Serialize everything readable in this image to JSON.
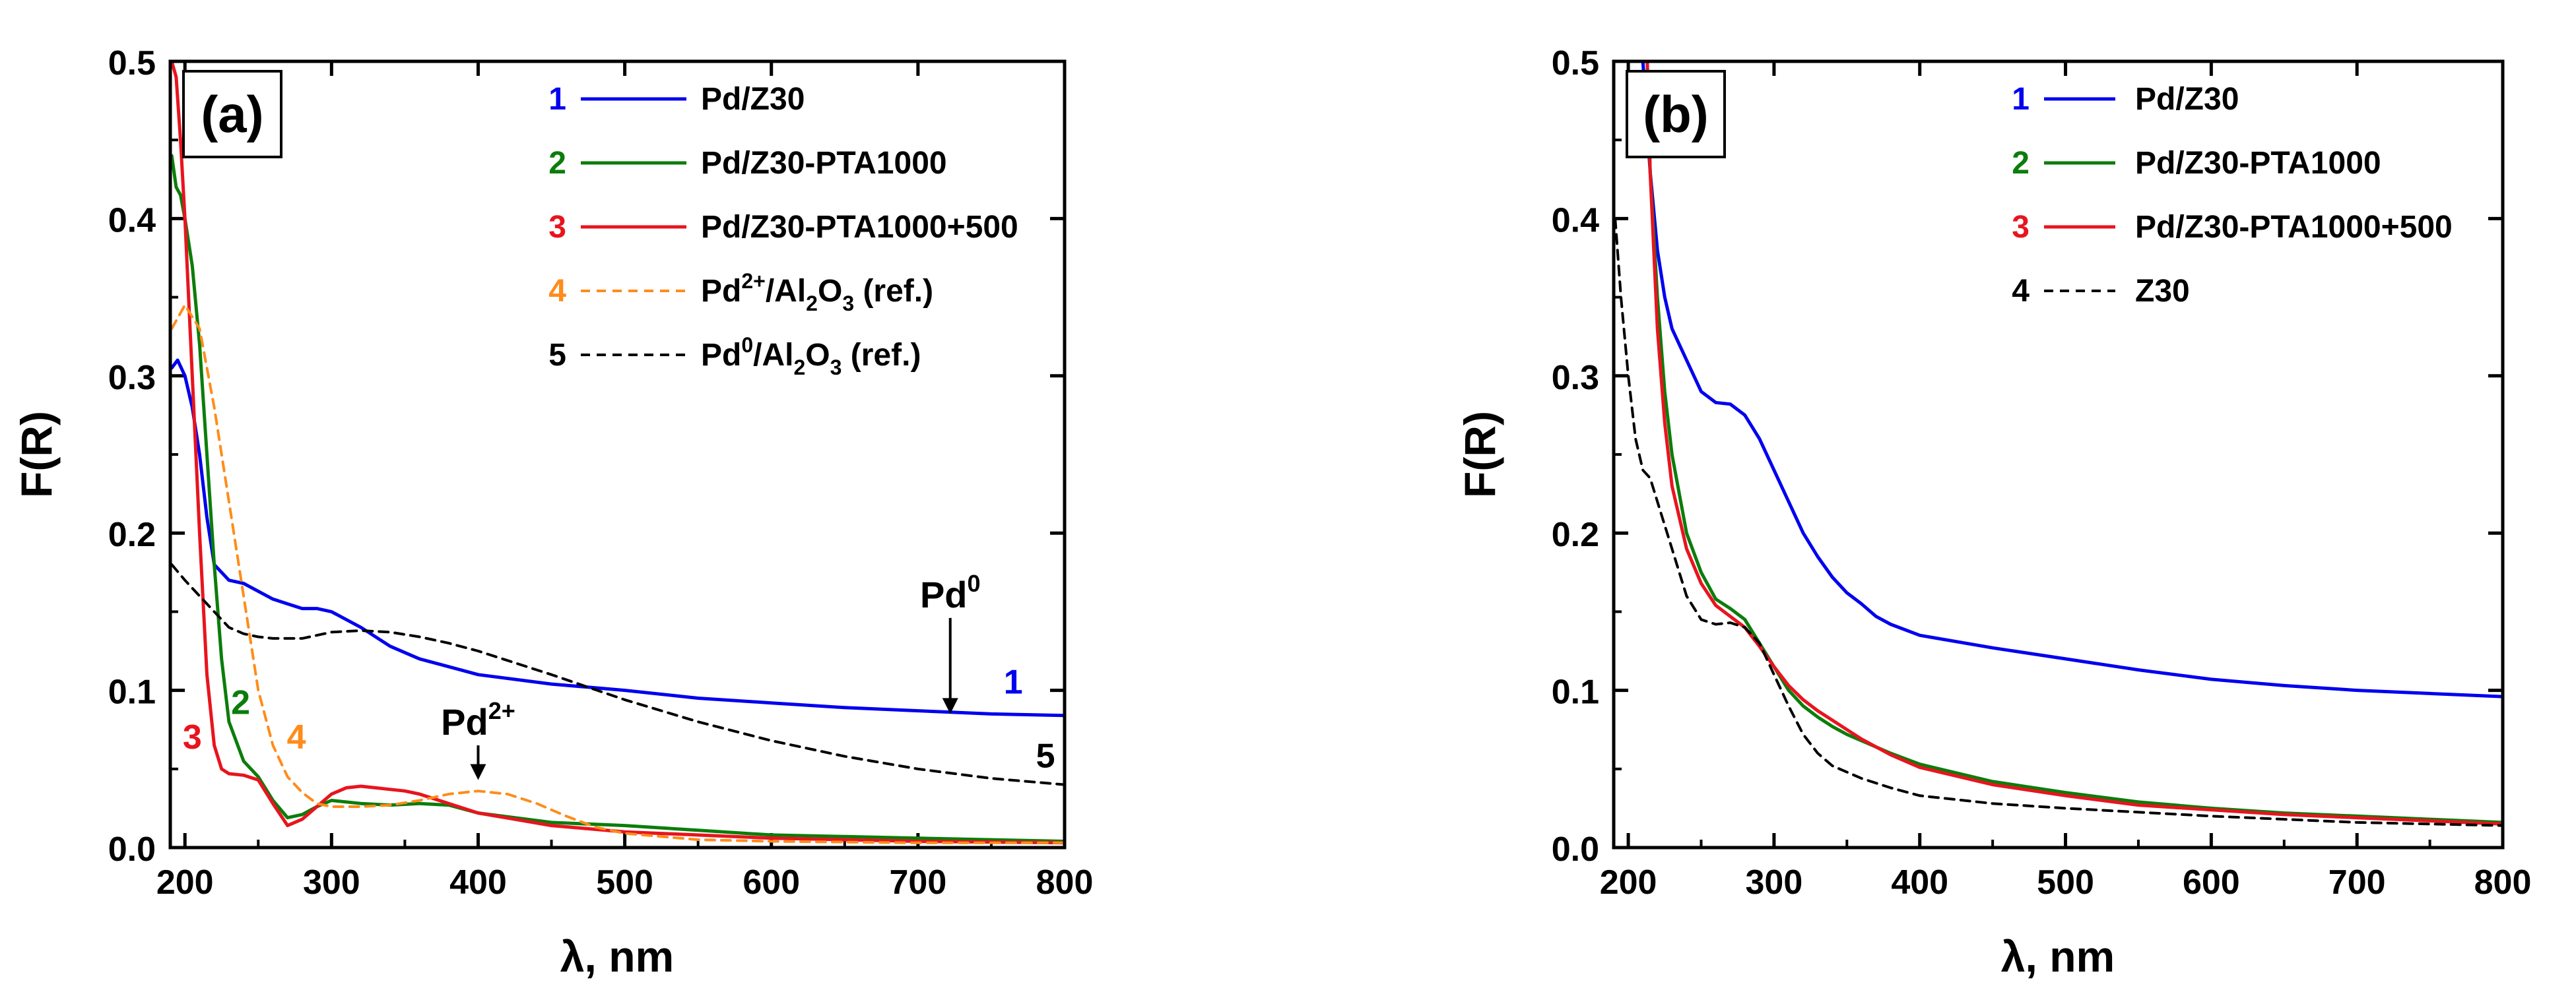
{
  "chart_data": [
    {
      "type": "line",
      "panel_label": "(a)",
      "xlabel_symbol": "λ",
      "xlabel_unit": ", nm",
      "ylabel": "F(R)",
      "xlim": [
        190,
        800
      ],
      "ylim": [
        0.0,
        0.5
      ],
      "x_ticks": [
        "200",
        "300",
        "400",
        "500",
        "600",
        "700",
        "800"
      ],
      "y_ticks": [
        "0.0",
        "0.1",
        "0.2",
        "0.3",
        "0.4",
        "0.5"
      ],
      "legend": [
        {
          "num": "1",
          "base": "Pd/Z30",
          "sup": "",
          "mid": "",
          "sub": "",
          "tail": "",
          "color": "#0000ee",
          "dash": false
        },
        {
          "num": "2",
          "base": "Pd/Z30-PTA1000",
          "sup": "",
          "mid": "",
          "sub": "",
          "tail": "",
          "color": "#0b7d0b",
          "dash": false
        },
        {
          "num": "3",
          "base": "Pd/Z30-PTA1000+500",
          "sup": "",
          "mid": "",
          "sub": "",
          "tail": "",
          "color": "#e8141e",
          "dash": false
        },
        {
          "num": "4",
          "base": "Pd",
          "sup": "2+",
          "mid": "/Al",
          "sub": "2",
          "mid2": "O",
          "sub2": "3",
          "tail": " (ref.)",
          "color": "#ff8c1a",
          "dash": true
        },
        {
          "num": "5",
          "base": "Pd",
          "sup": "0",
          "mid": "/Al",
          "sub": "2",
          "mid2": "O",
          "sub2": "3",
          "tail": " (ref.)",
          "color": "#000000",
          "dash": true
        }
      ],
      "series": [
        {
          "name": "1",
          "color": "#0000ee",
          "dash": false,
          "x": [
            191,
            195,
            200,
            205,
            210,
            215,
            220,
            230,
            240,
            250,
            260,
            270,
            280,
            290,
            300,
            320,
            340,
            360,
            380,
            400,
            450,
            500,
            550,
            600,
            650,
            700,
            750,
            800
          ],
          "y": [
            0.305,
            0.31,
            0.3,
            0.28,
            0.25,
            0.21,
            0.18,
            0.17,
            0.168,
            0.163,
            0.158,
            0.155,
            0.152,
            0.152,
            0.15,
            0.14,
            0.128,
            0.12,
            0.115,
            0.11,
            0.104,
            0.1,
            0.095,
            0.092,
            0.089,
            0.087,
            0.085,
            0.084
          ]
        },
        {
          "name": "2",
          "color": "#0b7d0b",
          "dash": false,
          "x": [
            191,
            194,
            197,
            200,
            205,
            210,
            215,
            220,
            225,
            230,
            240,
            250,
            260,
            270,
            280,
            290,
            300,
            320,
            340,
            360,
            380,
            400,
            450,
            500,
            550,
            600,
            650,
            700,
            750,
            800
          ],
          "y": [
            0.44,
            0.42,
            0.415,
            0.4,
            0.37,
            0.32,
            0.25,
            0.18,
            0.12,
            0.08,
            0.055,
            0.045,
            0.03,
            0.019,
            0.021,
            0.026,
            0.03,
            0.028,
            0.027,
            0.028,
            0.027,
            0.022,
            0.016,
            0.014,
            0.011,
            0.008,
            0.007,
            0.006,
            0.005,
            0.004
          ]
        },
        {
          "name": "3",
          "color": "#e8141e",
          "dash": false,
          "x": [
            191,
            194,
            197,
            200,
            205,
            210,
            215,
            220,
            225,
            230,
            240,
            250,
            260,
            270,
            280,
            290,
            300,
            310,
            320,
            330,
            340,
            350,
            360,
            380,
            400,
            450,
            500,
            600,
            700,
            800
          ],
          "y": [
            0.5,
            0.49,
            0.45,
            0.4,
            0.3,
            0.2,
            0.11,
            0.065,
            0.05,
            0.047,
            0.046,
            0.043,
            0.028,
            0.014,
            0.018,
            0.026,
            0.034,
            0.038,
            0.039,
            0.038,
            0.037,
            0.036,
            0.034,
            0.028,
            0.022,
            0.014,
            0.01,
            0.006,
            0.004,
            0.003
          ]
        },
        {
          "name": "4",
          "color": "#ff8c1a",
          "dash": true,
          "x": [
            191,
            200,
            210,
            220,
            230,
            240,
            250,
            260,
            270,
            280,
            290,
            300,
            320,
            340,
            360,
            380,
            400,
            420,
            440,
            460,
            480,
            500,
            550,
            600,
            700,
            800
          ],
          "y": [
            0.33,
            0.345,
            0.33,
            0.28,
            0.22,
            0.16,
            0.1,
            0.065,
            0.045,
            0.035,
            0.028,
            0.026,
            0.026,
            0.027,
            0.03,
            0.034,
            0.036,
            0.034,
            0.028,
            0.02,
            0.013,
            0.009,
            0.005,
            0.004,
            0.003,
            0.003
          ]
        },
        {
          "name": "5",
          "color": "#000000",
          "dash": true,
          "x": [
            191,
            200,
            210,
            220,
            230,
            240,
            250,
            260,
            280,
            300,
            320,
            340,
            360,
            380,
            400,
            450,
            500,
            550,
            600,
            650,
            700,
            750,
            800
          ],
          "y": [
            0.18,
            0.17,
            0.16,
            0.15,
            0.14,
            0.136,
            0.134,
            0.133,
            0.133,
            0.137,
            0.138,
            0.137,
            0.134,
            0.13,
            0.125,
            0.11,
            0.094,
            0.08,
            0.068,
            0.058,
            0.05,
            0.044,
            0.04
          ]
        }
      ],
      "annotations": {
        "pd0": {
          "label": "Pd",
          "sup": "0",
          "x": 722,
          "y_from": 0.146,
          "y_to": 0.085
        },
        "pd2": {
          "label": "Pd",
          "sup": "2+",
          "x": 400,
          "y_from": 0.065,
          "y_to": 0.043
        },
        "curve_labels": [
          {
            "text": "1",
            "x": 765,
            "y": 0.098,
            "color": "#0000ee"
          },
          {
            "text": "2",
            "x": 238,
            "y": 0.085,
            "color": "#0b7d0b"
          },
          {
            "text": "3",
            "x": 205,
            "y": 0.063,
            "color": "#e8141e"
          },
          {
            "text": "4",
            "x": 276,
            "y": 0.063,
            "color": "#ff8c1a"
          },
          {
            "text": "5",
            "x": 787,
            "y": 0.051,
            "color": "#000000"
          }
        ]
      }
    },
    {
      "type": "line",
      "panel_label": "(b)",
      "xlabel_symbol": "λ",
      "xlabel_unit": ", nm",
      "ylabel": "F(R)",
      "xlim": [
        190,
        800
      ],
      "ylim": [
        0.0,
        0.5
      ],
      "x_ticks": [
        "200",
        "300",
        "400",
        "500",
        "600",
        "700",
        "800"
      ],
      "y_ticks": [
        "0.0",
        "0.1",
        "0.2",
        "0.3",
        "0.4",
        "0.5"
      ],
      "legend": [
        {
          "num": "1",
          "base": "Pd/Z30",
          "color": "#0000ee",
          "dash": false
        },
        {
          "num": "2",
          "base": "Pd/Z30-PTA1000",
          "color": "#0b7d0b",
          "dash": false
        },
        {
          "num": "3",
          "base": "Pd/Z30-PTA1000+500",
          "color": "#e8141e",
          "dash": false
        },
        {
          "num": "4",
          "base": "Z30",
          "color": "#000000",
          "dash": true
        }
      ],
      "series": [
        {
          "name": "1",
          "color": "#0000ee",
          "dash": false,
          "x": [
            210,
            215,
            220,
            225,
            230,
            240,
            250,
            260,
            270,
            280,
            290,
            300,
            310,
            320,
            330,
            340,
            350,
            360,
            370,
            380,
            400,
            450,
            500,
            550,
            600,
            650,
            700,
            750,
            800
          ],
          "y": [
            0.5,
            0.43,
            0.38,
            0.35,
            0.33,
            0.31,
            0.29,
            0.283,
            0.282,
            0.275,
            0.26,
            0.24,
            0.22,
            0.2,
            0.185,
            0.172,
            0.162,
            0.155,
            0.147,
            0.142,
            0.135,
            0.127,
            0.12,
            0.113,
            0.107,
            0.103,
            0.1,
            0.098,
            0.096
          ]
        },
        {
          "name": "2",
          "color": "#0b7d0b",
          "dash": false,
          "x": [
            213,
            215,
            220,
            225,
            230,
            240,
            250,
            260,
            270,
            280,
            290,
            300,
            310,
            320,
            330,
            340,
            350,
            360,
            380,
            400,
            450,
            500,
            550,
            600,
            650,
            700,
            750,
            800
          ],
          "y": [
            0.5,
            0.43,
            0.35,
            0.29,
            0.25,
            0.2,
            0.175,
            0.158,
            0.152,
            0.145,
            0.13,
            0.115,
            0.1,
            0.09,
            0.083,
            0.077,
            0.072,
            0.068,
            0.06,
            0.053,
            0.042,
            0.035,
            0.029,
            0.025,
            0.022,
            0.02,
            0.018,
            0.016
          ]
        },
        {
          "name": "3",
          "color": "#e8141e",
          "dash": false,
          "x": [
            213,
            215,
            220,
            225,
            230,
            240,
            250,
            260,
            270,
            280,
            290,
            300,
            310,
            320,
            330,
            340,
            350,
            360,
            380,
            400,
            450,
            500,
            550,
            600,
            650,
            700,
            750,
            800
          ],
          "y": [
            0.5,
            0.43,
            0.33,
            0.27,
            0.23,
            0.19,
            0.168,
            0.154,
            0.147,
            0.14,
            0.128,
            0.115,
            0.103,
            0.094,
            0.087,
            0.081,
            0.075,
            0.069,
            0.059,
            0.051,
            0.04,
            0.033,
            0.027,
            0.024,
            0.021,
            0.019,
            0.017,
            0.015
          ]
        },
        {
          "name": "4",
          "color": "#000000",
          "dash": true,
          "x": [
            191,
            195,
            200,
            205,
            210,
            215,
            220,
            230,
            240,
            250,
            260,
            270,
            280,
            290,
            300,
            310,
            320,
            330,
            340,
            360,
            380,
            400,
            450,
            500,
            600,
            700,
            800
          ],
          "y": [
            0.4,
            0.35,
            0.3,
            0.26,
            0.24,
            0.235,
            0.22,
            0.19,
            0.16,
            0.145,
            0.142,
            0.143,
            0.14,
            0.13,
            0.11,
            0.09,
            0.072,
            0.06,
            0.052,
            0.044,
            0.038,
            0.033,
            0.028,
            0.025,
            0.02,
            0.016,
            0.014
          ]
        }
      ]
    }
  ]
}
